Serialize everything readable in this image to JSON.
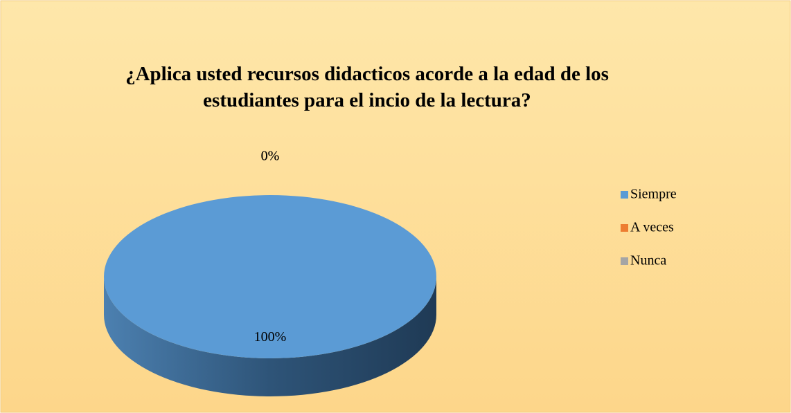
{
  "chart_data": {
    "type": "pie",
    "title": "¿Aplica usted recursos didacticos acorde a la edad de los estudiantes para el incio de la lectura?",
    "categories": [
      "Siempre",
      "A veces",
      "Nunca"
    ],
    "values": [
      100,
      0,
      0
    ],
    "value_labels": [
      "100%",
      "0%",
      "0%"
    ],
    "colors": [
      "#5b9bd5",
      "#ed7d31",
      "#a5a5a5"
    ],
    "legend": "right"
  }
}
